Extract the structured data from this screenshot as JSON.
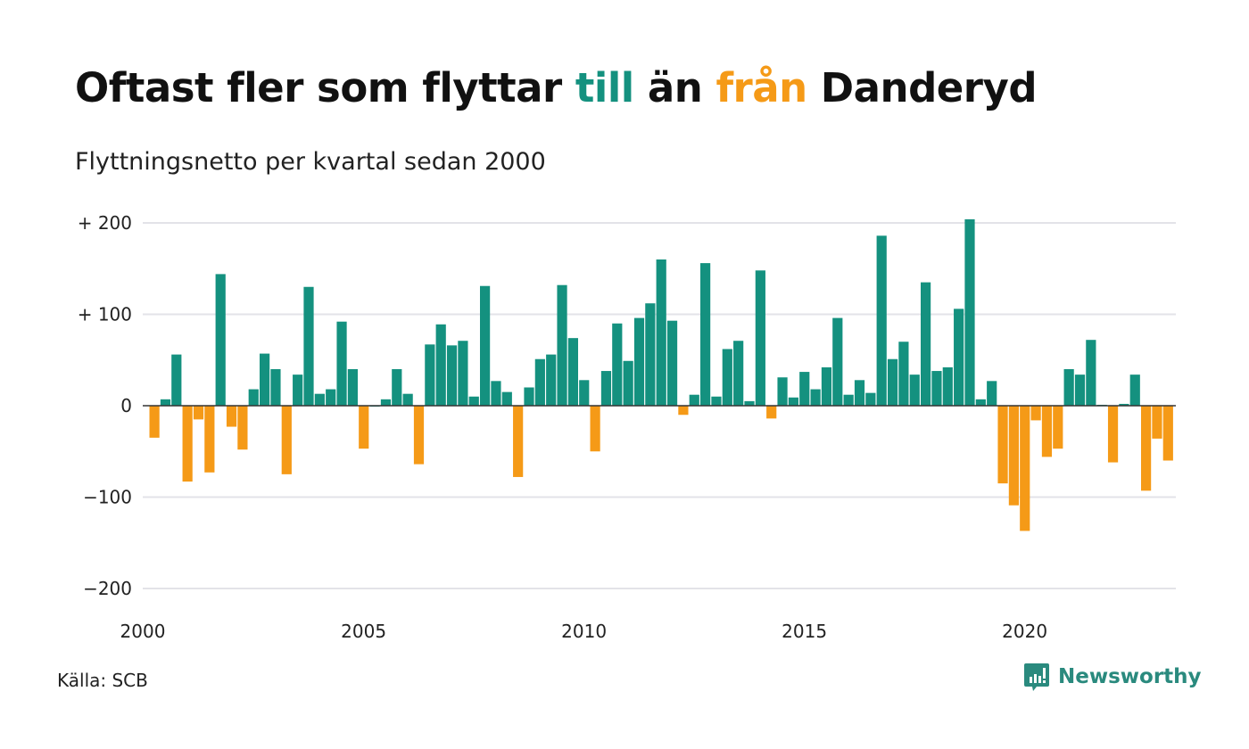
{
  "title": {
    "part1": "Oftast fler som flyttar ",
    "highlight_till": "till",
    "part2": " än ",
    "highlight_fran": "från",
    "part3": " Danderyd"
  },
  "subtitle": "Flyttningsnetto per kvartal sedan 2000",
  "source": "Källa: SCB",
  "brand": "Newsworthy",
  "colors": {
    "positive": "#14917f",
    "negative": "#f59a17",
    "grid": "#e3e3e8",
    "zero_line": "#333333"
  },
  "chart_data": {
    "type": "bar",
    "title": "Oftast fler som flyttar till än från Danderyd",
    "subtitle": "Flyttningsnetto per kvartal sedan 2000",
    "xlabel": "",
    "ylabel": "",
    "ylim": [
      -200,
      200
    ],
    "yticks": [
      200,
      100,
      0,
      -100,
      -200
    ],
    "ytick_labels": [
      "+ 200",
      "+ 100",
      "0",
      "−100",
      "−200"
    ],
    "xticks": [
      "2000",
      "2005",
      "2010",
      "2015",
      "2020"
    ],
    "grid": true,
    "start_year": 2000,
    "frequency": "quarterly",
    "values": [
      -35,
      7,
      56,
      -83,
      -15,
      -73,
      144,
      -23,
      -48,
      18,
      57,
      40,
      -75,
      34,
      130,
      13,
      18,
      92,
      40,
      -47,
      0,
      7,
      40,
      13,
      -64,
      67,
      89,
      66,
      71,
      10,
      131,
      27,
      15,
      -78,
      20,
      51,
      56,
      132,
      74,
      28,
      -50,
      38,
      90,
      49,
      96,
      112,
      160,
      93,
      -10,
      12,
      156,
      10,
      62,
      71,
      5,
      148,
      -14,
      31,
      9,
      37,
      18,
      42,
      96,
      12,
      28,
      14,
      186,
      51,
      70,
      34,
      135,
      38,
      42,
      106,
      204,
      7,
      27,
      -85,
      -109,
      -137,
      -16,
      -56,
      -47,
      40,
      34,
      72,
      1,
      -62,
      2,
      34,
      -93,
      -36,
      -60
    ]
  }
}
